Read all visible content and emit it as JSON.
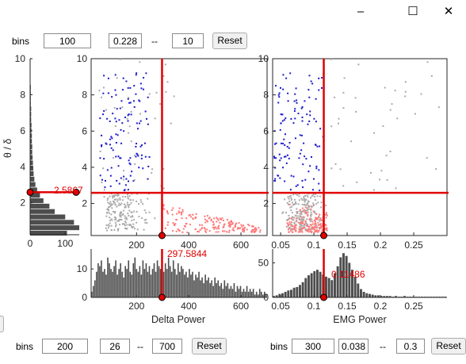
{
  "window": {
    "minimize_icon": "–",
    "maximize_icon": "☐",
    "close_icon": "✕"
  },
  "top_controls": {
    "bins_label": "bins",
    "bins_value": "100",
    "min_value": "0.228",
    "separator": "--",
    "max_value": "10",
    "reset_label": "Reset"
  },
  "delta_controls": {
    "bins_label": "bins",
    "bins_value": "200",
    "min_value": "26",
    "separator": "--",
    "max_value": "700",
    "reset_label": "Reset"
  },
  "emg_controls": {
    "bins_label": "bins",
    "bins_value": "300",
    "min_value": "0.038",
    "separator": "--",
    "max_value": "0.3",
    "reset_label": "Reset"
  },
  "ratio_histogram": {
    "ylabel": "θ / δ",
    "threshold_label": "2.5867",
    "x_ticks": [
      "0",
      "100"
    ],
    "y_ticks": [
      "2",
      "4",
      "6",
      "8",
      "10"
    ]
  },
  "delta_histogram": {
    "xlabel": "Delta Power",
    "threshold_label": "297.5844",
    "x_ticks": [
      "200",
      "400",
      "600"
    ],
    "y_ticks": [
      "0",
      "10"
    ]
  },
  "emg_histogram": {
    "xlabel": "EMG Power",
    "threshold_label": "0.11486",
    "x_ticks": [
      "0.05",
      "0.1",
      "0.15",
      "0.2",
      "0.25"
    ],
    "y_ticks": [
      "0",
      "50"
    ]
  },
  "scatter_delta": {
    "x_ticks": [
      "200",
      "400",
      "600"
    ],
    "y_ticks": [
      "2",
      "4",
      "6",
      "8",
      "10"
    ]
  },
  "scatter_emg": {
    "x_ticks": [
      "0.05",
      "0.1",
      "0.15",
      "0.2",
      "0.25"
    ],
    "y_ticks": [
      "2",
      "4",
      "6",
      "8",
      "10"
    ]
  },
  "chart_data": [
    {
      "type": "scatter",
      "panel": "ratio-vs-delta",
      "xlim": [
        26,
        700
      ],
      "ylim": [
        0.228,
        10
      ],
      "threshold_x": 297.5844,
      "threshold_y": 2.5867,
      "series_colors": {
        "rem": "#1a1acc",
        "nrem": "#aaaaaa",
        "wake": "#ff7777"
      }
    },
    {
      "type": "scatter",
      "panel": "ratio-vs-emg",
      "xlim": [
        0.038,
        0.3
      ],
      "ylim": [
        0.228,
        10
      ],
      "threshold_x": 0.11486,
      "threshold_y": 2.5867
    },
    {
      "type": "bar",
      "panel": "ratio-histogram",
      "orientation": "horizontal",
      "ylim": [
        0.228,
        10
      ],
      "xlim": [
        0,
        140
      ],
      "bins": [
        0.3,
        0.6,
        0.9,
        1.2,
        1.5,
        1.8,
        2.1,
        2.4,
        2.7,
        3.0,
        3.3,
        3.6,
        3.9,
        4.2,
        4.5,
        4.8,
        5.1,
        5.4,
        5.7,
        6.0,
        6.3,
        6.6,
        6.9,
        7.2,
        7.5,
        7.8,
        8.1,
        8.4,
        8.7,
        9.0,
        9.3,
        9.6,
        9.9
      ],
      "counts": [
        105,
        140,
        125,
        100,
        70,
        55,
        38,
        28,
        20,
        15,
        12,
        10,
        9,
        8,
        7,
        6,
        6,
        5,
        5,
        4,
        4,
        3,
        3,
        3,
        2,
        2,
        2,
        2,
        1,
        1,
        1,
        1,
        1
      ]
    },
    {
      "type": "bar",
      "panel": "delta-histogram",
      "xlim": [
        26,
        700
      ],
      "ylim": [
        0,
        17
      ],
      "counts": [
        2,
        4,
        6,
        9,
        12,
        11,
        13,
        9,
        10,
        8,
        14,
        12,
        10,
        9,
        11,
        13,
        8,
        10,
        12,
        9,
        7,
        11,
        10,
        13,
        9,
        8,
        12,
        14,
        10,
        9,
        11,
        8,
        13,
        10,
        12,
        9,
        11,
        8,
        10,
        12,
        9,
        13,
        11,
        10,
        8,
        9,
        12,
        10,
        14,
        11,
        9,
        13,
        10,
        8,
        12,
        9,
        11,
        10,
        8,
        9,
        7,
        10,
        8,
        9,
        6,
        8,
        7,
        9,
        6,
        7,
        5,
        8,
        6,
        7,
        5,
        6,
        4,
        7,
        5,
        6,
        4,
        5,
        3,
        6,
        4,
        5,
        3,
        4,
        3,
        5,
        2,
        4,
        3,
        4,
        2,
        3,
        2,
        4,
        2,
        3,
        2,
        3,
        1,
        2,
        1,
        3,
        2,
        1,
        2,
        1
      ]
    },
    {
      "type": "bar",
      "panel": "emg-histogram",
      "xlim": [
        0.038,
        0.3
      ],
      "ylim": [
        0,
        70
      ],
      "counts": [
        2,
        3,
        5,
        6,
        8,
        10,
        11,
        14,
        15,
        18,
        22,
        28,
        32,
        35,
        38,
        40,
        37,
        33,
        30,
        28,
        25,
        35,
        45,
        58,
        64,
        60,
        50,
        40,
        30,
        20,
        12,
        8,
        6,
        5,
        4,
        3,
        3,
        2,
        2,
        2,
        2,
        1,
        2,
        1,
        1,
        2,
        1,
        1,
        1,
        1,
        1,
        1,
        1,
        1,
        1,
        1,
        1,
        1,
        1,
        1
      ]
    }
  ]
}
